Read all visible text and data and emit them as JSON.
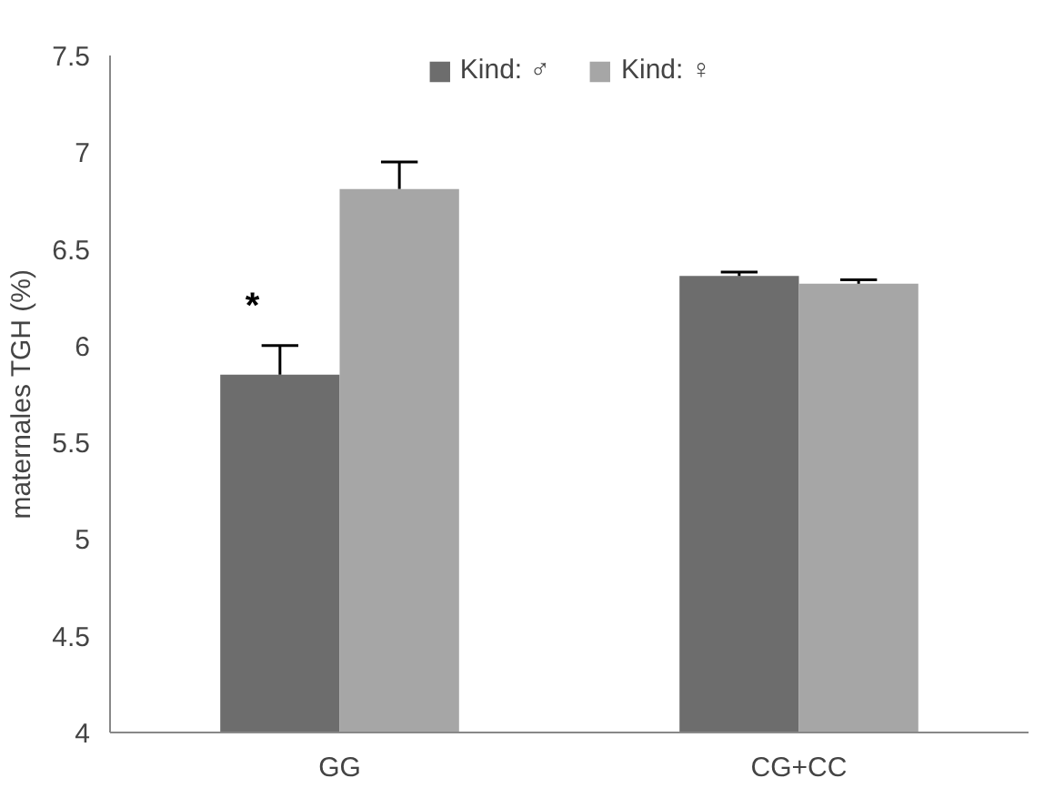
{
  "chart_data": {
    "type": "bar",
    "ylabel": "maternales TGH (%)",
    "categories": [
      "GG",
      "CG+CC"
    ],
    "series": [
      {
        "name": "Kind: ♂",
        "color": "#6d6d6d",
        "values": [
          5.85,
          6.36
        ],
        "errors": [
          [
            5.85,
            6.0
          ],
          [
            6.36,
            6.38
          ]
        ]
      },
      {
        "name": "Kind: ♀",
        "color": "#a6a6a6",
        "values": [
          6.81,
          6.32
        ],
        "errors": [
          [
            6.81,
            6.95
          ],
          [
            6.32,
            6.34
          ]
        ]
      }
    ],
    "ylim": [
      4,
      7.5
    ],
    "yticks": [
      4,
      4.5,
      5,
      5.5,
      6,
      6.5,
      7,
      7.5
    ],
    "grid": false,
    "legend": "top",
    "annotations": [
      {
        "text": "*",
        "x": "GG",
        "y": 6.2
      }
    ]
  }
}
